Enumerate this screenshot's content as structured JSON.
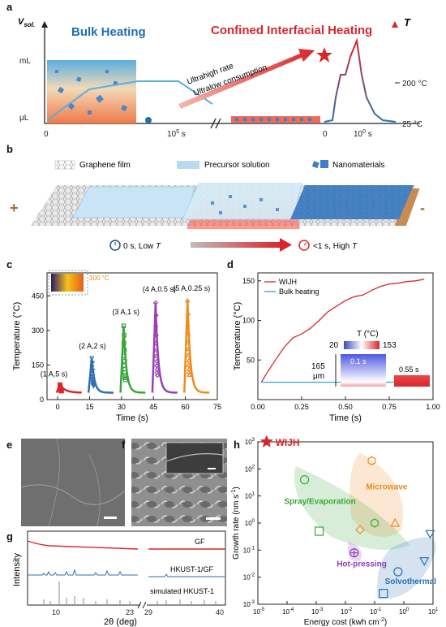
{
  "panel_a": {
    "label": "a",
    "y_axis": "V",
    "y_axis_sub": "sol.",
    "y_ticks": [
      "mL",
      "μL"
    ],
    "x_ticks": [
      "0",
      "10",
      "5",
      " s"
    ],
    "x_ticks_right": [
      "0",
      "10",
      "0",
      " s"
    ],
    "right_axis": "T",
    "right_ticks": [
      "200 °C",
      "25 °C"
    ],
    "bulk_title": "Bulk Heating",
    "confined_title": "Confined Interfacial Heating",
    "arrow_text_1": "Ultrahigh rate",
    "arrow_text_2": "Ultralow consumption",
    "colors": {
      "bulk": "#1f6fb2",
      "confined": "#d9262b"
    }
  },
  "panel_b": {
    "label": "b",
    "legend": [
      "Graphene film",
      "Precursor solution",
      "Nanomaterials"
    ],
    "plus": "+",
    "minus": "-",
    "left_state": "0 s, Low ",
    "right_state": "<1 s, High ",
    "T": "T"
  },
  "chart_data": [
    {
      "panel": "c",
      "type": "scatter",
      "xlabel": "Time (s)",
      "ylabel": "Temperature (°C)",
      "xlim": [
        -5,
        75
      ],
      "ylim": [
        0,
        550
      ],
      "xticks": [
        0,
        15,
        30,
        45,
        60,
        75
      ],
      "yticks": [
        0,
        150,
        300,
        450
      ],
      "inset_label": "300 °C",
      "series": [
        {
          "name": "(1 A,5 s)",
          "color": "#d9262b",
          "marker": "square",
          "peak_t": 1,
          "peak": 65,
          "pulse": 5
        },
        {
          "name": "(2 A,2 s)",
          "color": "#2c6fb0",
          "marker": "tri_down",
          "peak_t": 16,
          "peak": 180,
          "pulse": 2
        },
        {
          "name": "(3 A,1 s)",
          "color": "#3aa63a",
          "marker": "square",
          "peak_t": 31,
          "peak": 320,
          "pulse": 1
        },
        {
          "name": "(4 A,0.5 s)",
          "color": "#9a3fb5",
          "marker": "diamond",
          "peak_t": 46,
          "peak": 420,
          "pulse": 0.5
        },
        {
          "name": "(5 A,0.25 s)",
          "color": "#f08a1c",
          "marker": "tri_up",
          "peak_t": 61,
          "peak": 430,
          "pulse": 0.25
        }
      ]
    },
    {
      "panel": "d",
      "type": "line",
      "xlabel": "Time (s)",
      "ylabel": "Temperature (°C)",
      "xlim": [
        0,
        1.0
      ],
      "ylim": [
        0,
        160
      ],
      "xticks": [
        0.0,
        0.25,
        0.5,
        0.75,
        1.0
      ],
      "yticks": [
        50,
        100,
        150
      ],
      "series": [
        {
          "name": "WIJH",
          "color": "#d9262b",
          "x": [
            0.02,
            0.05,
            0.1,
            0.15,
            0.2,
            0.25,
            0.3,
            0.35,
            0.4,
            0.45,
            0.5,
            0.55,
            0.6,
            0.65,
            0.7,
            0.75,
            0.8,
            0.85,
            0.9,
            0.95
          ],
          "y": [
            22,
            33,
            50,
            66,
            78,
            83,
            90,
            100,
            111,
            118,
            125,
            130,
            132,
            138,
            143,
            146,
            147,
            149,
            150,
            152
          ]
        },
        {
          "name": "Bulk heating",
          "color": "#3a9fd6",
          "x": [
            0.02,
            0.95
          ],
          "y": [
            22,
            22
          ]
        }
      ],
      "inset": {
        "title": "T (°C)",
        "min": "20",
        "max": "153",
        "thickness": "165",
        "thickness_unit": "μm",
        "t1": "0.1 s",
        "t2": "0.55 s"
      }
    },
    {
      "panel": "h",
      "type": "scatter",
      "xlabel": "Energy cost (kwh cm",
      "xlabel_sup": "-2",
      "ylabel": "Growth rate (nm s",
      "ylabel_sup": "-1",
      "x_log_range": [
        -5,
        1
      ],
      "y_log_range": [
        -3,
        3
      ],
      "groups": [
        {
          "name": "WIJH",
          "color": "#d9262b"
        },
        {
          "name": "Microwave",
          "color": "#f08a1c"
        },
        {
          "name": "Spray/Evaporation",
          "color": "#3aa63a"
        },
        {
          "name": "Hot-pressing",
          "color": "#8a3fb5"
        },
        {
          "name": "Solvothermal",
          "color": "#2c6fb0"
        }
      ],
      "points": [
        {
          "group": "WIJH",
          "marker": "star",
          "x": -4.7,
          "y": 3.0
        },
        {
          "group": "Microwave",
          "marker": "hexagon",
          "x": -1.1,
          "y": 2.3
        },
        {
          "group": "Microwave",
          "marker": "diamond",
          "x": -1.5,
          "y": -0.25
        },
        {
          "group": "Microwave",
          "marker": "tri_up",
          "x": -0.3,
          "y": 0.0
        },
        {
          "group": "Spray/Evaporation",
          "marker": "circle",
          "x": -3.4,
          "y": 1.6
        },
        {
          "group": "Spray/Evaporation",
          "marker": "square",
          "x": -2.9,
          "y": -0.3
        },
        {
          "group": "Spray/Evaporation",
          "marker": "hexagon",
          "x": -1.0,
          "y": 0.0
        },
        {
          "group": "Hot-pressing",
          "marker": "circle_plus",
          "x": -1.7,
          "y": -1.1
        },
        {
          "group": "Solvothermal",
          "marker": "tri_down",
          "x": 0.9,
          "y": -0.4
        },
        {
          "group": "Solvothermal",
          "marker": "tri_down",
          "x": 0.7,
          "y": -1.4
        },
        {
          "group": "Solvothermal",
          "marker": "circle",
          "x": -0.2,
          "y": -1.8
        },
        {
          "group": "Solvothermal",
          "marker": "square",
          "x": -0.7,
          "y": -2.6
        }
      ]
    },
    {
      "panel": "g",
      "type": "line",
      "xlabel": "2θ (deg)",
      "ylabel": "Intensity",
      "xticks": [
        "10",
        "23",
        "29",
        "40"
      ],
      "series": [
        {
          "name": "GF",
          "color": "#d9262b"
        },
        {
          "name": "HKUST-1/GF",
          "color": "#2c6fb0"
        },
        {
          "name": "simulated HKUST-1",
          "color": "#888888"
        }
      ]
    }
  ],
  "panel_c_label": "c",
  "panel_d_label": "d",
  "panel_e_label": "e",
  "panel_f_label": "f",
  "panel_g_label": "g",
  "panel_h_label": "h"
}
